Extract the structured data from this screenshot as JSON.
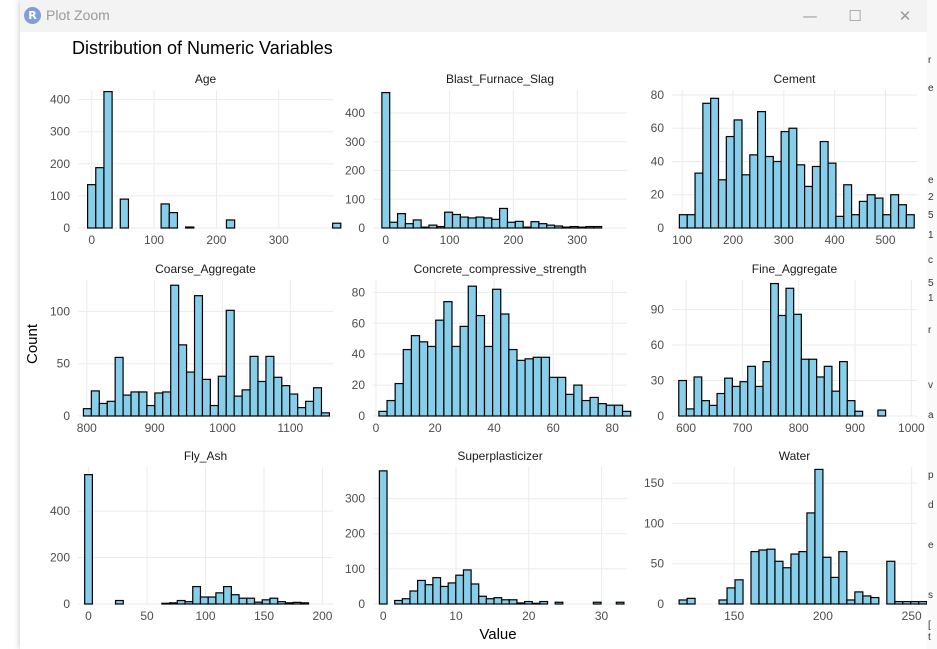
{
  "window": {
    "title": "Plot Zoom",
    "app_icon_letter": "R",
    "minimize_glyph": "—",
    "maximize_glyph": "☐",
    "close_glyph": "✕"
  },
  "plot": {
    "title": "Distribution of Numeric Variables",
    "xlabel": "Value",
    "ylabel": "Count",
    "fill_color": "#87ceeb",
    "edge_color": "#000000",
    "grid_color": "#ebebeb"
  },
  "chart_data": [
    {
      "type": "bar",
      "title": "Age",
      "xlim": [
        -22,
        387
      ],
      "ylim": [
        0,
        430
      ],
      "xticks": [
        0,
        100,
        200,
        300
      ],
      "yticks": [
        0,
        100,
        200,
        300,
        400
      ],
      "bin_width": 13.1,
      "bin_start": -6.6,
      "values": [
        135,
        188,
        425,
        0,
        90,
        0,
        0,
        0,
        0,
        75,
        48,
        0,
        3,
        0,
        0,
        0,
        0,
        25,
        0,
        0,
        0,
        0,
        0,
        0,
        0,
        0,
        0,
        0,
        0,
        0,
        15,
        0
      ]
    },
    {
      "type": "bar",
      "title": "Blast_Furnace_Slag",
      "xlim": [
        -20,
        378
      ],
      "ylim": [
        0,
        480
      ],
      "xticks": [
        0,
        100,
        200,
        300
      ],
      "yticks": [
        0,
        100,
        200,
        300,
        400
      ],
      "bin_width": 12.3,
      "bin_start": -6.1,
      "values": [
        471,
        20,
        50,
        15,
        28,
        3,
        10,
        5,
        55,
        47,
        38,
        35,
        38,
        35,
        30,
        68,
        20,
        23,
        3,
        22,
        15,
        10,
        7,
        3,
        5,
        3,
        5,
        5
      ]
    },
    {
      "type": "bar",
      "title": "Cement",
      "xlim": [
        80,
        562
      ],
      "ylim": [
        0,
        83
      ],
      "xticks": [
        100,
        200,
        300,
        400,
        500
      ],
      "yticks": [
        0,
        20,
        40,
        60,
        80
      ],
      "bin_width": 15.4,
      "bin_start": 94.5,
      "values": [
        8,
        8,
        33,
        75,
        78,
        29,
        55,
        65,
        32,
        44,
        70,
        43,
        40,
        58,
        60,
        38,
        25,
        37,
        52,
        39,
        7,
        26,
        8,
        16,
        20,
        18,
        8,
        20,
        14,
        8
      ]
    },
    {
      "type": "bar",
      "title": "Coarse_Aggregate",
      "xlim": [
        787,
        1163
      ],
      "ylim": [
        0,
        130
      ],
      "xticks": [
        800,
        900,
        1000,
        1100
      ],
      "yticks": [
        0,
        50,
        100
      ],
      "bin_width": 11.7,
      "bin_start": 795,
      "values": [
        7,
        24,
        12,
        14,
        56,
        20,
        23,
        23,
        10,
        22,
        23,
        125,
        68,
        42,
        115,
        35,
        10,
        38,
        101,
        19,
        25,
        57,
        33,
        57,
        37,
        29,
        21,
        8,
        14,
        27,
        3
      ]
    },
    {
      "type": "bar",
      "title": "Concrete_compressive_strength",
      "xlim": [
        -1,
        85
      ],
      "ylim": [
        0,
        88
      ],
      "xticks": [
        0,
        20,
        40,
        60,
        80
      ],
      "yticks": [
        0,
        20,
        40,
        60,
        80
      ],
      "bin_width": 2.75,
      "bin_start": 1.0,
      "values": [
        3,
        10,
        21,
        43,
        52,
        48,
        45,
        62,
        74,
        45,
        58,
        84,
        65,
        45,
        82,
        66,
        43,
        36,
        37,
        38,
        38,
        25,
        25,
        14,
        20,
        10,
        12,
        8,
        7,
        7,
        3
      ]
    },
    {
      "type": "bar",
      "title": "Fine_Aggregate",
      "xlim": [
        575,
        1010
      ],
      "ylim": [
        0,
        115
      ],
      "xticks": [
        600,
        700,
        800,
        900,
        1000
      ],
      "yticks": [
        0,
        30,
        60,
        90
      ],
      "bin_width": 13.6,
      "bin_start": 587,
      "values": [
        30,
        6,
        33,
        13,
        9,
        19,
        32,
        25,
        29,
        42,
        25,
        46,
        112,
        85,
        108,
        86,
        48,
        48,
        33,
        42,
        21,
        46,
        13,
        4,
        0,
        0,
        5
      ]
    },
    {
      "type": "bar",
      "title": "Fly_Ash",
      "xlim": [
        -9,
        209
      ],
      "ylim": [
        0,
        590
      ],
      "xticks": [
        0,
        50,
        100,
        150,
        200
      ],
      "yticks": [
        0,
        200,
        400
      ],
      "bin_width": 6.6,
      "bin_start": -3.3,
      "values": [
        557,
        0,
        0,
        0,
        15,
        0,
        0,
        0,
        0,
        0,
        3,
        5,
        15,
        10,
        75,
        30,
        30,
        48,
        75,
        40,
        25,
        25,
        8,
        18,
        25,
        10,
        5,
        7,
        5
      ]
    },
    {
      "type": "bar",
      "title": "Superplasticizer",
      "xlim": [
        -1.4,
        33.5
      ],
      "ylim": [
        0,
        390
      ],
      "xticks": [
        0,
        10,
        20,
        30
      ],
      "yticks": [
        0,
        100,
        200,
        300
      ],
      "bin_width": 1.05,
      "bin_start": -0.52,
      "values": [
        379,
        0,
        10,
        15,
        37,
        67,
        55,
        75,
        50,
        60,
        82,
        97,
        57,
        22,
        15,
        18,
        12,
        12,
        3,
        7,
        2,
        7,
        0,
        5,
        0,
        0,
        0,
        0,
        5,
        0,
        0,
        5
      ]
    },
    {
      "type": "bar",
      "title": "Water",
      "xlim": [
        115,
        253
      ],
      "ylim": [
        0,
        170
      ],
      "xticks": [
        150,
        200,
        250
      ],
      "yticks": [
        0,
        50,
        100,
        150
      ],
      "bin_width": 4.5,
      "bin_start": 119,
      "values": [
        5,
        7,
        0,
        0,
        0,
        5,
        20,
        30,
        0,
        65,
        67,
        68,
        53,
        45,
        62,
        65,
        113,
        167,
        58,
        33,
        65,
        5,
        15,
        10,
        8,
        0,
        53,
        3,
        3,
        3,
        3
      ]
    }
  ],
  "side_strip": {
    "glyphs": [
      "r",
      "e",
      "e",
      "2",
      "5",
      "1",
      "c",
      "5",
      "1",
      "r",
      "v",
      "a",
      "p",
      "d",
      "e",
      "s",
      "[",
      "t"
    ]
  }
}
